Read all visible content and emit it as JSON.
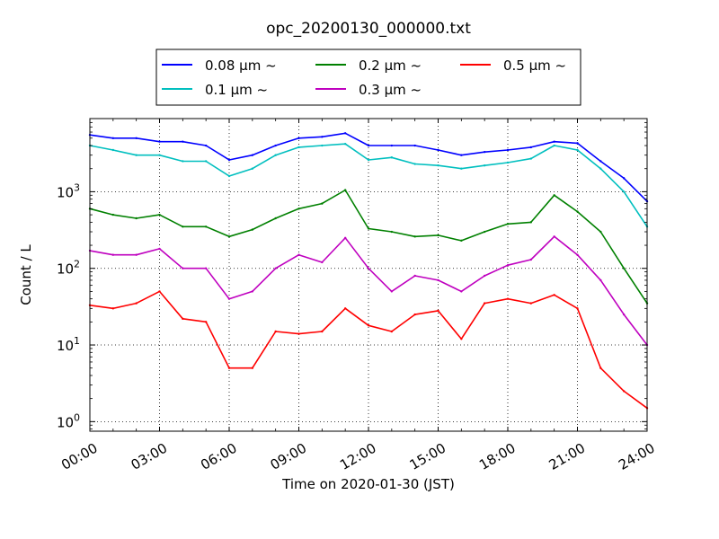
{
  "chart_data": {
    "type": "line",
    "title": "opc_20200130_000000.txt",
    "xlabel": "Time on 2020-01-30 (JST)",
    "ylabel": "Count / L",
    "yscale": "log",
    "xlim": [
      "00:00",
      "24:00"
    ],
    "ylim": [
      0.75,
      9000
    ],
    "grid": true,
    "legend_location": "top-center",
    "x_ticks": [
      "00:00",
      "03:00",
      "06:00",
      "09:00",
      "12:00",
      "15:00",
      "18:00",
      "21:00",
      "24:00"
    ],
    "y_ticks": [
      {
        "base": "10",
        "exp": "0",
        "value": 1
      },
      {
        "base": "10",
        "exp": "1",
        "value": 10
      },
      {
        "base": "10",
        "exp": "2",
        "value": 100
      },
      {
        "base": "10",
        "exp": "3",
        "value": 1000
      }
    ],
    "x": [
      "00:00",
      "01:00",
      "02:00",
      "03:00",
      "04:00",
      "05:00",
      "06:00",
      "07:00",
      "08:00",
      "09:00",
      "10:00",
      "11:00",
      "12:00",
      "13:00",
      "14:00",
      "15:00",
      "16:00",
      "17:00",
      "18:00",
      "19:00",
      "20:00",
      "21:00",
      "22:00",
      "23:00",
      "24:00"
    ],
    "series": [
      {
        "name": "0.08 μm ~",
        "color": "#0000ff",
        "values": [
          5500,
          5000,
          5000,
          4500,
          4500,
          4000,
          2600,
          3000,
          4000,
          5000,
          5200,
          5800,
          4000,
          4000,
          4000,
          3500,
          3000,
          3300,
          3500,
          3800,
          4500,
          4300,
          2500,
          1500,
          750
        ]
      },
      {
        "name": "0.1 μm ~",
        "color": "#00bfbf",
        "values": [
          4000,
          3500,
          3000,
          3000,
          2500,
          2500,
          1600,
          2000,
          3000,
          3800,
          4000,
          4200,
          2600,
          2800,
          2300,
          2200,
          2000,
          2200,
          2400,
          2700,
          4000,
          3500,
          2000,
          1000,
          350
        ]
      },
      {
        "name": "0.2 μm ~",
        "color": "#008000",
        "values": [
          600,
          500,
          450,
          500,
          350,
          350,
          260,
          320,
          450,
          600,
          700,
          1050,
          330,
          300,
          260,
          270,
          230,
          300,
          380,
          400,
          900,
          550,
          300,
          100,
          35
        ]
      },
      {
        "name": "0.3 μm ~",
        "color": "#bf00bf",
        "values": [
          170,
          150,
          150,
          180,
          100,
          100,
          40,
          50,
          100,
          150,
          120,
          250,
          100,
          50,
          80,
          70,
          50,
          80,
          110,
          130,
          260,
          150,
          70,
          25,
          10
        ]
      },
      {
        "name": "0.5 μm ~",
        "color": "#ff0000",
        "values": [
          33,
          30,
          35,
          50,
          22,
          20,
          5,
          5,
          15,
          14,
          15,
          30,
          18,
          15,
          25,
          28,
          12,
          35,
          40,
          35,
          45,
          30,
          5,
          2.5,
          1.5
        ]
      }
    ]
  }
}
